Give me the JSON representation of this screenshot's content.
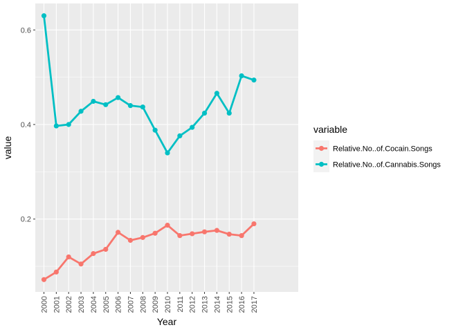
{
  "chart_data": {
    "type": "line",
    "title": "",
    "xlabel": "Year",
    "ylabel": "value",
    "x": [
      "2000",
      "2001",
      "2002",
      "2003",
      "2004",
      "2005",
      "2006",
      "2007",
      "2008",
      "2009",
      "2010",
      "2011",
      "2012",
      "2013",
      "2014",
      "2015",
      "2016",
      "2017"
    ],
    "series": [
      {
        "name": "Relative.No..of.Cocain.Songs",
        "color": "#F8766D",
        "values": [
          0.072,
          0.088,
          0.12,
          0.105,
          0.127,
          0.136,
          0.172,
          0.155,
          0.161,
          0.17,
          0.187,
          0.165,
          0.169,
          0.173,
          0.176,
          0.168,
          0.165,
          0.19
        ]
      },
      {
        "name": "Relative.No..of.Cannabis.Songs",
        "color": "#00BFC4",
        "values": [
          0.63,
          0.397,
          0.4,
          0.428,
          0.449,
          0.442,
          0.457,
          0.44,
          0.437,
          0.388,
          0.34,
          0.376,
          0.394,
          0.424,
          0.466,
          0.424,
          0.503,
          0.494
        ]
      }
    ],
    "ylim": [
      0.046,
      0.656
    ],
    "yticks": [
      0.2,
      0.4,
      0.6
    ],
    "yticklabels": [
      "0.2",
      "0.4",
      "0.6"
    ],
    "grid": true,
    "legend": {
      "title": "variable",
      "position": "right"
    }
  }
}
